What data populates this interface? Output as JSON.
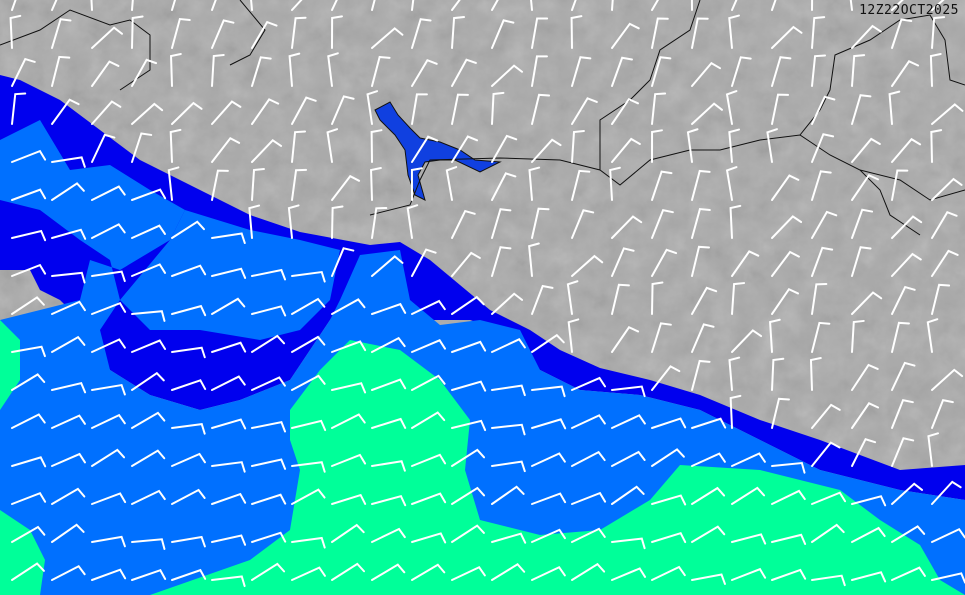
{
  "map": {
    "timestamp": "12Z22OCT2025",
    "colors": {
      "land": "#a9a9a9",
      "sea_low": "#0000ee",
      "sea_mid": "#0070ff",
      "sea_high": "#00ff99",
      "lake": "#1040e0",
      "barb": "#ffffff",
      "border": "#111111"
    },
    "icons": [
      "wind-barb-icon"
    ]
  }
}
